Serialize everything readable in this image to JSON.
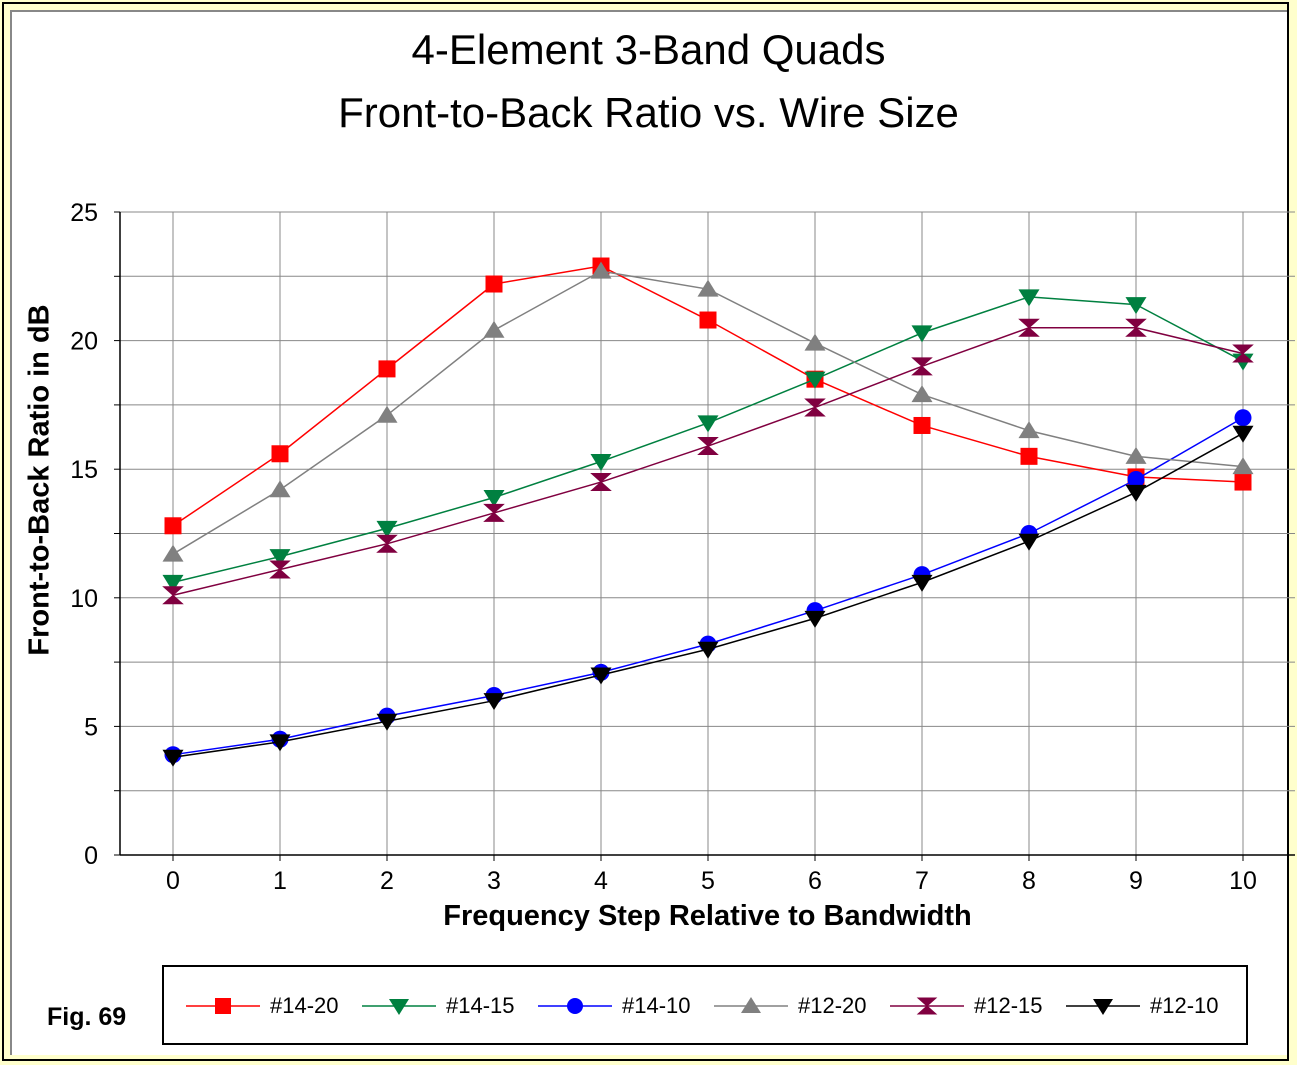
{
  "title_line1": "4-Element 3-Band Quads",
  "title_line2": "Front-to-Back Ratio vs. Wire Size",
  "figure_label": "Fig. 69",
  "colors": {
    "background": "#ffffcc",
    "grid": "#888888"
  },
  "chart_data": {
    "type": "line",
    "title": "4-Element 3-Band Quads Front-to-Back Ratio vs. Wire Size",
    "xlabel": "Frequency Step Relative to Bandwidth",
    "ylabel": "Front-to-Back Ratio in dB",
    "x": [
      0,
      1,
      2,
      3,
      4,
      5,
      6,
      7,
      8,
      9,
      10
    ],
    "xlim": [
      0,
      10
    ],
    "ylim": [
      0,
      25
    ],
    "y_ticks": [
      0,
      5,
      10,
      15,
      20,
      25
    ],
    "grid": true,
    "legend_position": "bottom",
    "series": [
      {
        "name": "#14-20",
        "color": "#ff0000",
        "marker": "square",
        "values": [
          12.8,
          15.6,
          18.9,
          22.2,
          22.9,
          20.8,
          18.5,
          16.7,
          15.5,
          14.7,
          14.5
        ]
      },
      {
        "name": "#14-15",
        "color": "#008040",
        "marker": "triangle-down",
        "values": [
          10.6,
          11.6,
          12.7,
          13.9,
          15.3,
          16.8,
          18.5,
          20.3,
          21.7,
          21.4,
          19.2
        ]
      },
      {
        "name": "#14-10",
        "color": "#0000ff",
        "marker": "circle",
        "values": [
          3.9,
          4.5,
          5.4,
          6.2,
          7.1,
          8.2,
          9.5,
          10.9,
          12.5,
          14.6,
          17.0
        ]
      },
      {
        "name": "#12-20",
        "color": "#808080",
        "marker": "triangle-up",
        "values": [
          11.7,
          14.2,
          17.1,
          20.4,
          22.7,
          22.0,
          19.9,
          17.9,
          16.5,
          15.5,
          15.1
        ]
      },
      {
        "name": "#12-15",
        "color": "#800040",
        "marker": "hourglass",
        "values": [
          10.1,
          11.1,
          12.1,
          13.3,
          14.5,
          15.9,
          17.4,
          19.0,
          20.5,
          20.5,
          19.5
        ]
      },
      {
        "name": "#12-10",
        "color": "#000000",
        "marker": "triangle-down",
        "values": [
          3.8,
          4.4,
          5.2,
          6.0,
          7.0,
          8.0,
          9.2,
          10.6,
          12.2,
          14.1,
          16.4
        ]
      }
    ]
  }
}
